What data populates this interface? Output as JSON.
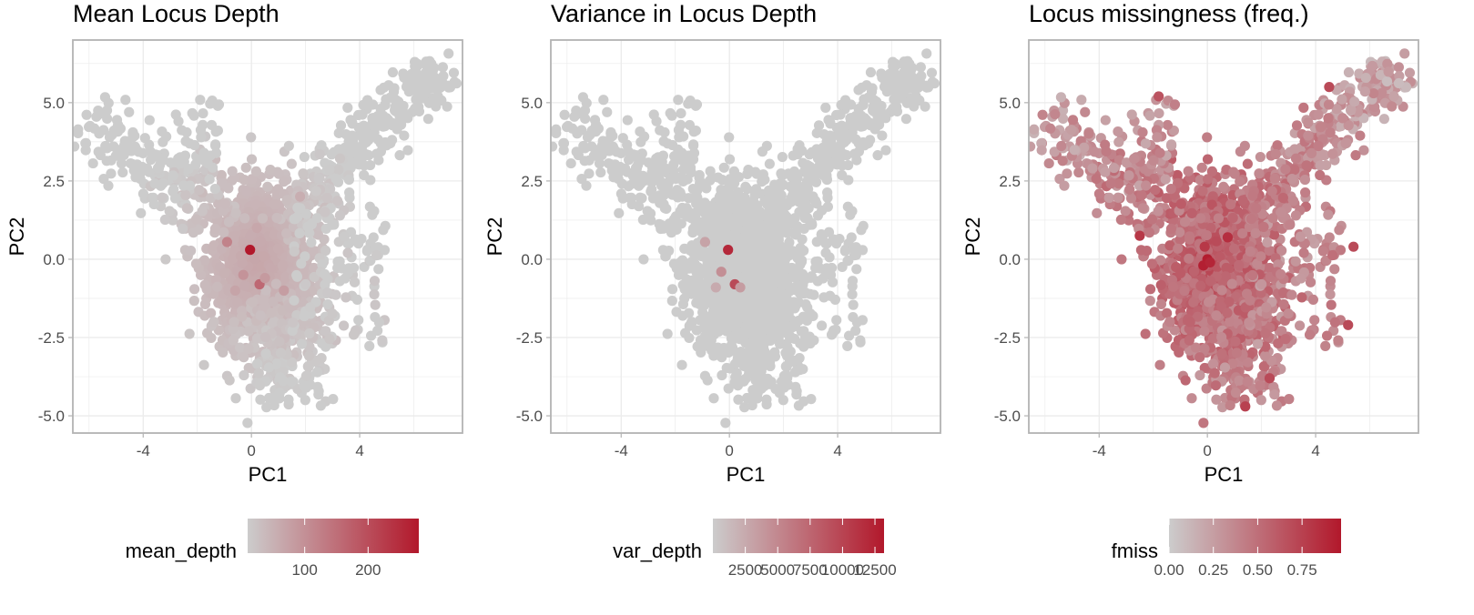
{
  "colors": {
    "low": "#cccccc",
    "high": "#b2182b",
    "grid": "#ebebeb",
    "border": "#b3b3b3",
    "tick_text": "#4d4d4d"
  },
  "chart_data": [
    {
      "type": "scatter",
      "title": "Mean Locus Depth",
      "xlabel": "PC1",
      "ylabel": "PC2",
      "xlim": [
        -6.6,
        7.8
      ],
      "ylim": [
        -5.55,
        7.0
      ],
      "x_ticks": [
        -4,
        0,
        4
      ],
      "x_tick_labels": [
        "-4",
        "0",
        "4"
      ],
      "y_ticks": [
        -5,
        -2.5,
        0,
        2.5,
        5
      ],
      "y_tick_labels": [
        "-5.0",
        "-2.5",
        "0.0",
        "2.5",
        "5.0"
      ],
      "grid": true,
      "legend": {
        "position": "bottom",
        "title": "mean_depth",
        "range": [
          10,
          280
        ],
        "ticks": [
          100,
          200
        ],
        "tick_labels": [
          "100",
          "200"
        ]
      },
      "highlights": [
        {
          "x": -0.05,
          "y": 0.3,
          "value": 280
        },
        {
          "x": 0.3,
          "y": -0.8,
          "value": 160
        },
        {
          "x": -0.9,
          "y": 0.55,
          "value": 120
        },
        {
          "x": -0.3,
          "y": -0.5,
          "value": 95
        },
        {
          "x": 0.5,
          "y": -0.6,
          "value": 85
        },
        {
          "x": -0.6,
          "y": -1.0,
          "value": 70
        },
        {
          "x": 1.2,
          "y": -1.0,
          "value": 80
        },
        {
          "x": 0.2,
          "y": 1.0,
          "value": 65
        },
        {
          "x": -0.4,
          "y": 0.1,
          "value": 60
        },
        {
          "x": 1.8,
          "y": 2.0,
          "value": 55
        }
      ]
    },
    {
      "type": "scatter",
      "title": "Variance in Locus Depth",
      "xlabel": "PC1",
      "ylabel": "PC2",
      "xlim": [
        -6.6,
        7.8
      ],
      "ylim": [
        -5.55,
        7.0
      ],
      "x_ticks": [
        -4,
        0,
        4
      ],
      "x_tick_labels": [
        "-4",
        "0",
        "4"
      ],
      "y_ticks": [
        -5,
        -2.5,
        0,
        2.5,
        5
      ],
      "y_tick_labels": [
        "-5.0",
        "-2.5",
        "0.0",
        "2.5",
        "5.0"
      ],
      "grid": true,
      "legend": {
        "position": "bottom",
        "title": "var_depth",
        "range": [
          0,
          13200
        ],
        "ticks": [
          2500,
          5000,
          7500,
          10000,
          12500
        ],
        "tick_labels": [
          "2500",
          "5000",
          "7500",
          "10000",
          "12500"
        ]
      },
      "highlights": [
        {
          "x": -0.05,
          "y": 0.3,
          "value": 12000
        },
        {
          "x": 0.2,
          "y": -0.8,
          "value": 9500
        },
        {
          "x": -0.3,
          "y": -0.4,
          "value": 4500
        },
        {
          "x": -0.9,
          "y": 0.55,
          "value": 3000
        },
        {
          "x": 0.4,
          "y": -0.9,
          "value": 3500
        },
        {
          "x": -0.5,
          "y": -0.9,
          "value": 2500
        }
      ]
    },
    {
      "type": "scatter",
      "title": "Locus missingness (freq.)",
      "xlabel": "PC1",
      "ylabel": "PC2",
      "xlim": [
        -6.6,
        7.8
      ],
      "ylim": [
        -5.55,
        7.0
      ],
      "x_ticks": [
        -4,
        0,
        4
      ],
      "x_tick_labels": [
        "-4",
        "0",
        "4"
      ],
      "y_ticks": [
        -5,
        -2.5,
        0,
        2.5,
        5
      ],
      "y_tick_labels": [
        "-5.0",
        "-2.5",
        "0.0",
        "2.5",
        "5.0"
      ],
      "grid": true,
      "legend": {
        "position": "bottom",
        "title": "fmiss",
        "range": [
          0,
          0.97
        ],
        "ticks": [
          0,
          0.25,
          0.5,
          0.75
        ],
        "tick_labels": [
          "0.00",
          "0.25",
          "0.50",
          "0.75"
        ]
      },
      "highlights": [
        {
          "x": 0.0,
          "y": 0.0,
          "value": 0.95
        },
        {
          "x": -0.15,
          "y": -0.2,
          "value": 0.93
        },
        {
          "x": 0.1,
          "y": -0.1,
          "value": 0.9
        },
        {
          "x": 0.75,
          "y": 0.7,
          "value": 0.85
        },
        {
          "x": -2.5,
          "y": 0.75,
          "value": 0.8
        },
        {
          "x": -0.1,
          "y": 0.4,
          "value": 0.8
        },
        {
          "x": 5.4,
          "y": 0.4,
          "value": 0.7
        },
        {
          "x": 2.3,
          "y": -3.8,
          "value": 0.7
        },
        {
          "x": 1.4,
          "y": -4.7,
          "value": 0.75
        },
        {
          "x": 5.2,
          "y": -2.1,
          "value": 0.7
        },
        {
          "x": -1.8,
          "y": 5.2,
          "value": 0.65
        },
        {
          "x": 4.5,
          "y": 5.5,
          "value": 0.7
        }
      ]
    }
  ]
}
